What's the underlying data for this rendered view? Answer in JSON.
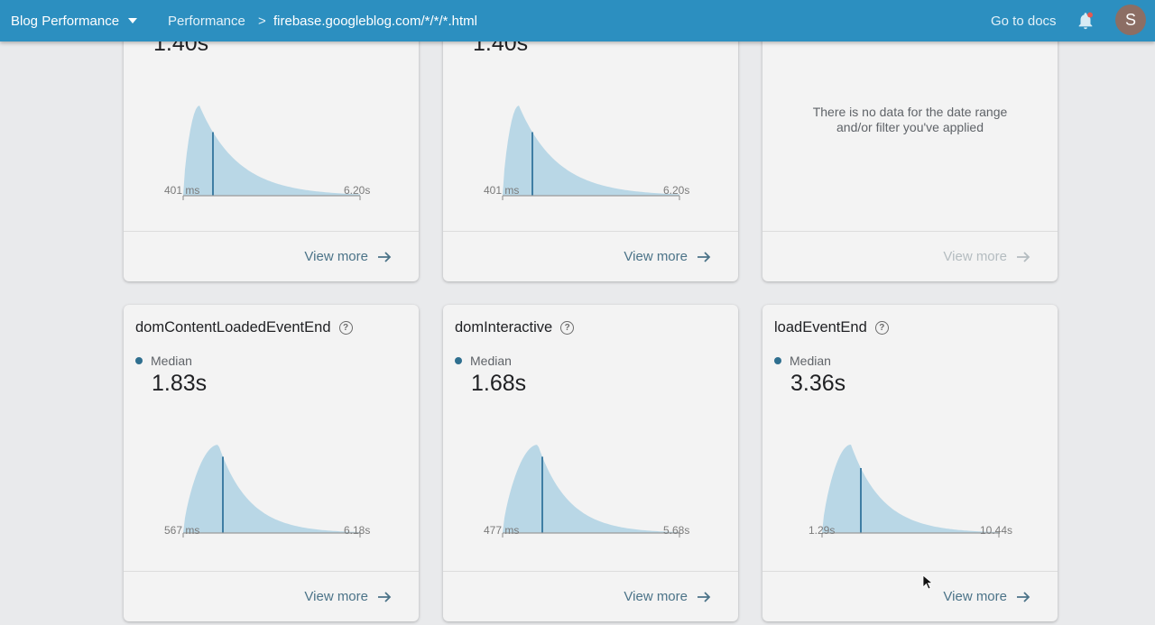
{
  "header": {
    "project": "Blog Performance",
    "breadcrumb": [
      "Performance",
      "firebase.googleblog.com/*/*/*.html"
    ],
    "breadcrumb_separator": ">",
    "docs_link": "Go to docs",
    "avatar_initial": "S",
    "bar_color": "#2c8fc0"
  },
  "cards": [
    {
      "id": "top-left",
      "median_value": "1.40s",
      "axis_min": "401 ms",
      "axis_max": "6.20s",
      "view_more": "View more"
    },
    {
      "id": "top-middle",
      "median_value": "1.40s",
      "axis_min": "401 ms",
      "axis_max": "6.20s",
      "view_more": "View more"
    },
    {
      "id": "top-right",
      "no_data_line1": "There is no data for the date range",
      "no_data_line2": "and/or filter you've applied",
      "view_more": "View more",
      "view_more_disabled": true
    },
    {
      "id": "dom-content-loaded",
      "title": "domContentLoadedEventEnd",
      "median_label": "Median",
      "median_value": "1.83s",
      "axis_min": "567 ms",
      "axis_max": "6.18s",
      "view_more": "View more"
    },
    {
      "id": "dom-interactive",
      "title": "domInteractive",
      "median_label": "Median",
      "median_value": "1.68s",
      "axis_min": "477 ms",
      "axis_max": "5.68s",
      "view_more": "View more"
    },
    {
      "id": "load-event-end",
      "title": "loadEventEnd",
      "median_label": "Median",
      "median_value": "3.36s",
      "axis_min": "1.29s",
      "axis_max": "10.44s",
      "view_more": "View more"
    }
  ],
  "colors": {
    "distribution_fill": "#b9d7e6",
    "median_line": "#3f7ea4",
    "median_dot": "#2f6f8f",
    "link": "#4b7388"
  }
}
